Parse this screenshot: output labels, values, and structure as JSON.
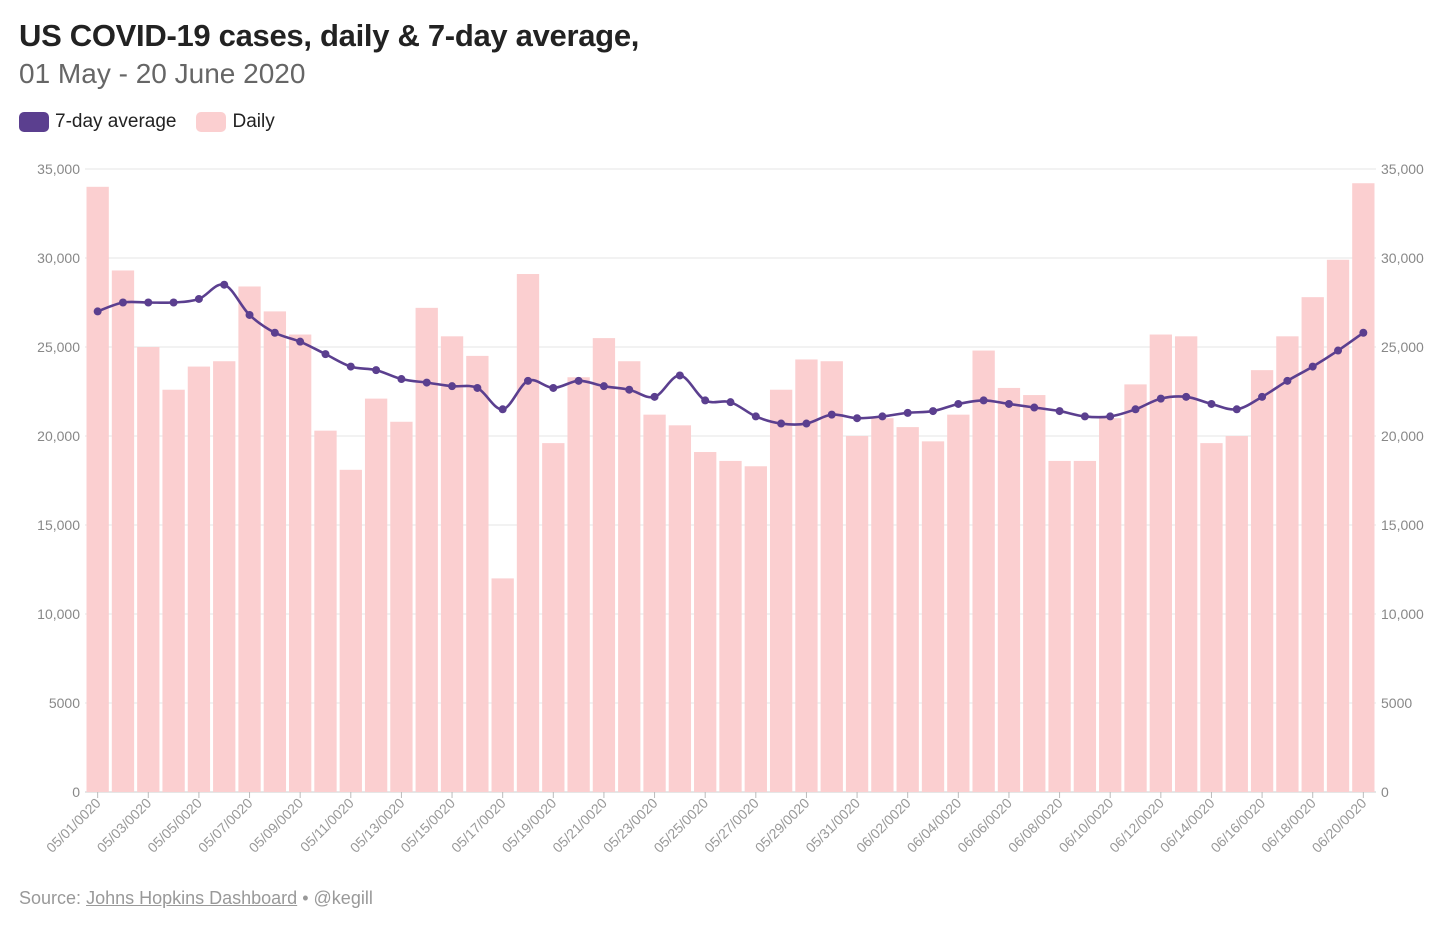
{
  "title": "US COVID-19 cases, daily & 7-day average,",
  "subtitle": "01 May - 20 June 2020",
  "legend": [
    {
      "label": "7-day average",
      "color": "#5b3f8f"
    },
    {
      "label": "Daily",
      "color": "#fbcfd0"
    }
  ],
  "source": {
    "prefix": "Source:",
    "link_text": "Johns Hopkins Dashboard",
    "separator": "•",
    "credit": "@kegill"
  },
  "chart_data": {
    "type": "bar",
    "categories": [
      "05/01/0020",
      "05/02/0020",
      "05/03/0020",
      "05/04/0020",
      "05/05/0020",
      "05/06/0020",
      "05/07/0020",
      "05/08/0020",
      "05/09/0020",
      "05/10/0020",
      "05/11/0020",
      "05/12/0020",
      "05/13/0020",
      "05/14/0020",
      "05/15/0020",
      "05/16/0020",
      "05/17/0020",
      "05/18/0020",
      "05/19/0020",
      "05/20/0020",
      "05/21/0020",
      "05/22/0020",
      "05/23/0020",
      "05/24/0020",
      "05/25/0020",
      "05/26/0020",
      "05/27/0020",
      "05/28/0020",
      "05/29/0020",
      "05/30/0020",
      "05/31/0020",
      "06/01/0020",
      "06/02/0020",
      "06/03/0020",
      "06/04/0020",
      "06/05/0020",
      "06/06/0020",
      "06/07/0020",
      "06/08/0020",
      "06/09/0020",
      "06/10/0020",
      "06/11/0020",
      "06/12/0020",
      "06/13/0020",
      "06/14/0020",
      "06/15/0020",
      "06/16/0020",
      "06/17/0020",
      "06/18/0020",
      "06/19/0020",
      "06/20/0020"
    ],
    "x_tick_labels": [
      "05/01/0020",
      "05/03/0020",
      "05/05/0020",
      "05/07/0020",
      "05/09/0020",
      "05/11/0020",
      "05/13/0020",
      "05/15/0020",
      "05/17/0020",
      "05/19/0020",
      "05/21/0020",
      "05/23/0020",
      "05/25/0020",
      "05/27/0020",
      "05/29/0020",
      "05/31/0020",
      "06/02/0020",
      "06/04/0020",
      "06/06/0020",
      "06/08/0020",
      "06/10/0020",
      "06/12/0020",
      "06/14/0020",
      "06/16/0020",
      "06/18/0020",
      "06/20/0020"
    ],
    "series": [
      {
        "name": "Daily",
        "type": "bar",
        "color": "#fbcfd0",
        "values": [
          34000,
          29300,
          25000,
          22600,
          23900,
          24200,
          28400,
          27000,
          25700,
          20300,
          18100,
          22100,
          20800,
          27200,
          25600,
          24500,
          12000,
          29100,
          19600,
          23300,
          25500,
          24200,
          21200,
          20600,
          19100,
          18600,
          18300,
          22600,
          24300,
          24200,
          20000,
          21000,
          20500,
          19700,
          21200,
          24800,
          22700,
          22300,
          18600,
          18600,
          21000,
          22900,
          25700,
          25600,
          19600,
          20000,
          23700,
          25600,
          27800,
          29900,
          34200
        ]
      },
      {
        "name": "7-day average",
        "type": "line",
        "color": "#5b3f8f",
        "values": [
          27000,
          27500,
          27500,
          27500,
          27700,
          28500,
          26800,
          25800,
          25300,
          24600,
          23900,
          23700,
          23200,
          23000,
          22800,
          22700,
          21500,
          23100,
          22700,
          23100,
          22800,
          22600,
          22200,
          23400,
          22000,
          21900,
          21100,
          20700,
          20700,
          21200,
          21000,
          21100,
          21300,
          21400,
          21800,
          22000,
          21800,
          21600,
          21400,
          21100,
          21100,
          21500,
          22100,
          22200,
          21800,
          21500,
          22200,
          23100,
          23900,
          24800,
          25800
        ]
      }
    ],
    "yticks": [
      "0",
      "5000",
      "10,000",
      "15,000",
      "20,000",
      "25,000",
      "30,000",
      "35,000"
    ],
    "ylim": [
      0,
      35000
    ],
    "grid": true,
    "legend_position": "top-left"
  }
}
